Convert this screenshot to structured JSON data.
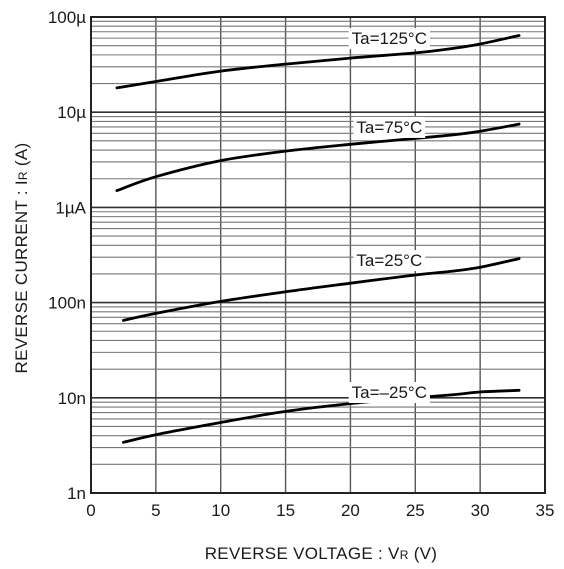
{
  "chart_data": {
    "type": "line",
    "title": "",
    "xlabel": "REVERSE VOLTAGE : V",
    "xlabel_sub": "R",
    "xlabel_unit": " (V)",
    "ylabel": "REVERSE CURRENT : I",
    "ylabel_sub": "R",
    "ylabel_unit": " (A)",
    "xlim": [
      0,
      35
    ],
    "ylim": [
      1e-09,
      0.0001
    ],
    "yscale": "log",
    "grid": true,
    "legend": "none",
    "x_ticks": [
      0,
      5,
      10,
      15,
      20,
      25,
      30,
      35
    ],
    "x_tick_labels": [
      "0",
      "5",
      "10",
      "15",
      "20",
      "25",
      "30",
      "35"
    ],
    "y_ticks": [
      1e-09,
      1e-08,
      1e-07,
      1e-06,
      1e-05,
      0.0001
    ],
    "y_tick_labels": [
      "1n",
      "10n",
      "100n",
      "1µA",
      "10µ",
      "100µ"
    ],
    "series": [
      {
        "name": "Ta=125°C",
        "x": [
          2,
          5,
          10,
          15,
          20,
          25,
          28,
          30,
          33
        ],
        "y": [
          1.8e-05,
          2.1e-05,
          2.7e-05,
          3.2e-05,
          3.7e-05,
          4.2e-05,
          4.7e-05,
          5.2e-05,
          6.4e-05
        ]
      },
      {
        "name": "Ta=75°C",
        "x": [
          2,
          5,
          10,
          15,
          20,
          25,
          28,
          30,
          33
        ],
        "y": [
          1.5e-06,
          2.1e-06,
          3.1e-06,
          3.9e-06,
          4.6e-06,
          5.3e-06,
          5.8e-06,
          6.3e-06,
          7.5e-06
        ]
      },
      {
        "name": "Ta=25°C",
        "x": [
          2.5,
          5,
          10,
          15,
          20,
          25,
          28,
          30,
          33
        ],
        "y": [
          6.5e-08,
          7.7e-08,
          1.03e-07,
          1.3e-07,
          1.6e-07,
          1.95e-07,
          2.15e-07,
          2.35e-07,
          2.9e-07
        ]
      },
      {
        "name": "Ta=-25°C",
        "x": [
          2.5,
          5,
          10,
          15,
          20,
          25,
          28,
          30,
          33
        ],
        "y": [
          3.4e-09,
          4.1e-09,
          5.5e-09,
          7.2e-09,
          8.7e-09,
          1e-08,
          1.08e-08,
          1.15e-08,
          1.2e-08
        ]
      }
    ]
  },
  "series_labels": [
    {
      "text": "Ta=125°C",
      "x": 23,
      "y": 6e-05
    },
    {
      "text": "Ta=75°C",
      "x": 23,
      "y": 7e-06
    },
    {
      "text": "Ta=25°C",
      "x": 23,
      "y": 2.8e-07
    },
    {
      "text": "Ta=–25°C",
      "x": 23,
      "y": 1.15e-08
    }
  ]
}
